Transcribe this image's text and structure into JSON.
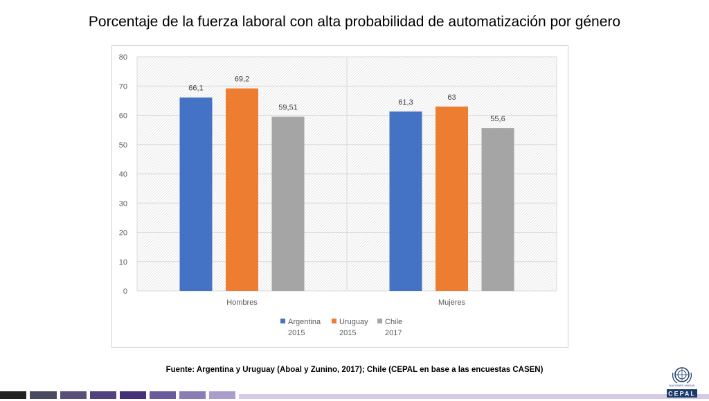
{
  "title": "Porcentaje de la fuerza laboral con alta probabilidad de automatización por género",
  "source": "Fuente: Argentina y Uruguay (Aboal y Zunino, 2017); Chile (CEPAL en base a las encuestas CASEN)",
  "logo": {
    "un_text": "NACIONES UNIDAS",
    "name": "CEPAL"
  },
  "colors": {
    "argentina": "#4472C4",
    "uruguay": "#ED7D31",
    "chile": "#A5A5A5"
  },
  "chart_data": {
    "type": "bar",
    "title": "Porcentaje de la fuerza laboral con alta probabilidad de automatización por género",
    "categories": [
      "Hombres",
      "Mujeres"
    ],
    "series": [
      {
        "name": "Argentina 2015",
        "values": [
          66.1,
          61.3
        ],
        "labels": [
          "66,1",
          "61,3"
        ],
        "color": "#4472C4"
      },
      {
        "name": "Uruguay 2015",
        "values": [
          69.2,
          63
        ],
        "labels": [
          "69,2",
          "63"
        ],
        "color": "#ED7D31"
      },
      {
        "name": "Chile 2017",
        "values": [
          59.51,
          55.6
        ],
        "labels": [
          "59,51",
          "55,6"
        ],
        "color": "#A5A5A5"
      }
    ],
    "legend": [
      {
        "line1": "Argentina",
        "line2": "2015"
      },
      {
        "line1": "Uruguay",
        "line2": "2015"
      },
      {
        "line1": "Chile",
        "line2": "2017"
      }
    ],
    "ylim": [
      0,
      80
    ],
    "yticks": [
      0,
      10,
      20,
      30,
      40,
      50,
      60,
      70,
      80
    ],
    "grid": true,
    "legend_position": "bottom",
    "xlabel": "",
    "ylabel": ""
  }
}
